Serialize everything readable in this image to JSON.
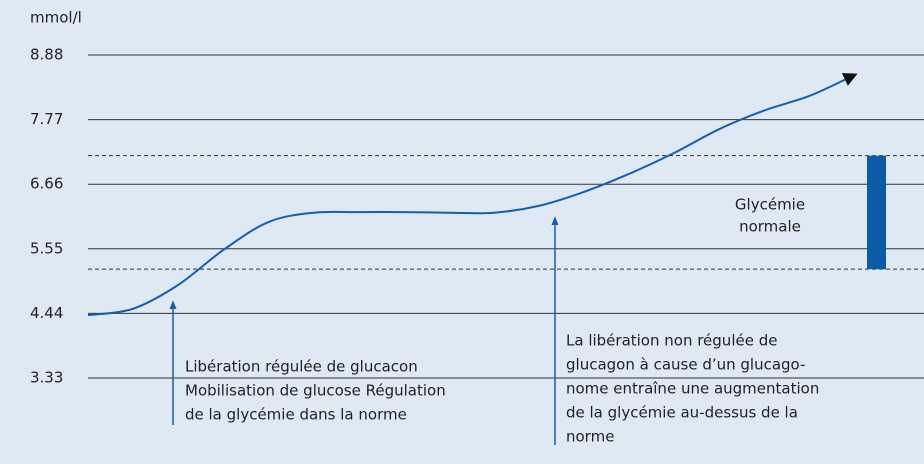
{
  "chart_data": {
    "type": "line",
    "y_label": "mmol/l",
    "categories": [
      null,
      null,
      null,
      null,
      null,
      null,
      null,
      null,
      null,
      null,
      null,
      null,
      null,
      null,
      null,
      null,
      null,
      null
    ],
    "series": [
      {
        "name": null,
        "color": "#1560a8",
        "values": [
          4.41,
          4.52,
          4.93,
          5.53,
          6.01,
          6.17,
          6.18,
          6.18,
          6.17,
          6.17,
          6.29,
          6.53,
          6.84,
          7.2,
          7.61,
          7.93,
          8.18,
          8.54
        ]
      }
    ],
    "ylim": [
      3.33,
      8.88
    ],
    "yticks": [
      3.33,
      4.44,
      5.55,
      6.66,
      7.77,
      8.88
    ],
    "grid": true,
    "reference_band": {
      "lines": [
        "Glycémie",
        "normale"
      ],
      "low": 5.2,
      "high": 7.15,
      "color": "#0b5ba8"
    },
    "annotations": [
      {
        "lines": [
          "Libération régulée de glucacon",
          "Mobilisation de glucose Régulation",
          "de la glycémie dans la norme"
        ]
      },
      {
        "lines": [
          "La libération non régulée de",
          "glucagon à cause d’un glucago-",
          "nome entraîne une augmentation",
          "de la glycémie au-dessus de la",
          "norme"
        ]
      }
    ]
  }
}
